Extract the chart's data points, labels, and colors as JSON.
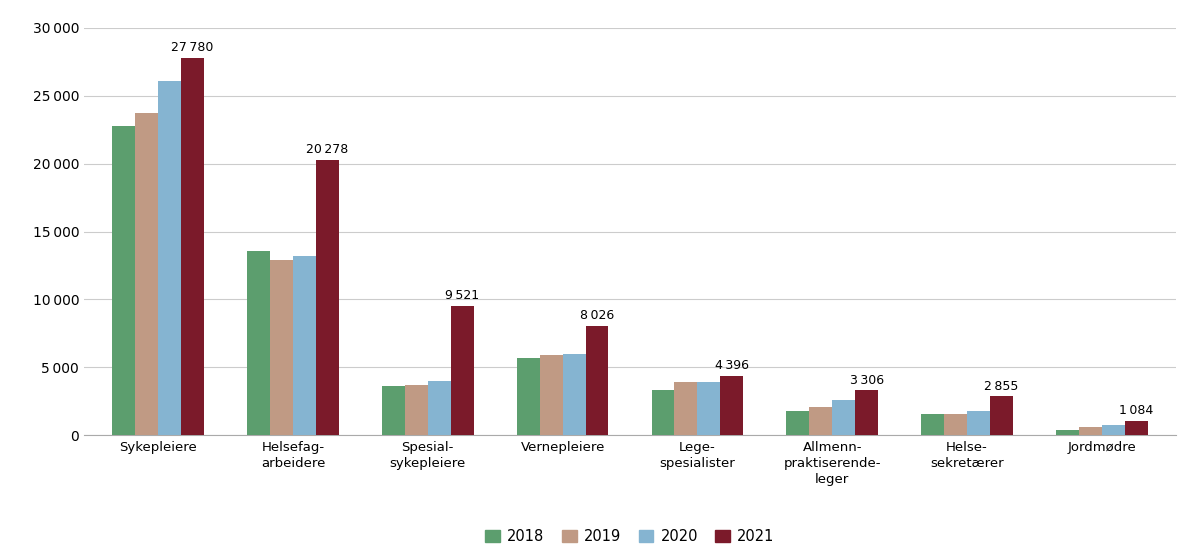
{
  "categories": [
    "Sykepleiere",
    "Helsefag-\narbeidere",
    "Spesial-\nsykepleiere",
    "Vernepleiere",
    "Lege-\nspesialister",
    "Allmenn-\npraktiserende-\nleger",
    "Helse-\nsekretærer",
    "Jordmødre"
  ],
  "years": [
    "2018",
    "2019",
    "2020",
    "2021"
  ],
  "values": {
    "2018": [
      22800,
      13600,
      3600,
      5700,
      3300,
      1800,
      1600,
      350
    ],
    "2019": [
      23700,
      12900,
      3700,
      5900,
      3900,
      2050,
      1550,
      600
    ],
    "2020": [
      26100,
      13200,
      4000,
      6000,
      3950,
      2600,
      1800,
      750
    ],
    "2021": [
      27780,
      20278,
      9521,
      8026,
      4396,
      3306,
      2855,
      1084
    ]
  },
  "ann_labels": [
    "27 780",
    "20 278",
    "9 521",
    "8 026",
    "4 396",
    "3 306",
    "2 855",
    "1 084"
  ],
  "colors": {
    "2018": "#5c9e6e",
    "2019": "#c09a84",
    "2020": "#85b4d1",
    "2021": "#7b1a2a"
  },
  "ylim": [
    0,
    30000
  ],
  "yticks": [
    0,
    5000,
    10000,
    15000,
    20000,
    25000,
    30000
  ],
  "bar_width": 0.17,
  "background_color": "#ffffff",
  "grid_color": "#cccccc",
  "legend_labels": [
    "2018",
    "2019",
    "2020",
    "2021"
  ]
}
